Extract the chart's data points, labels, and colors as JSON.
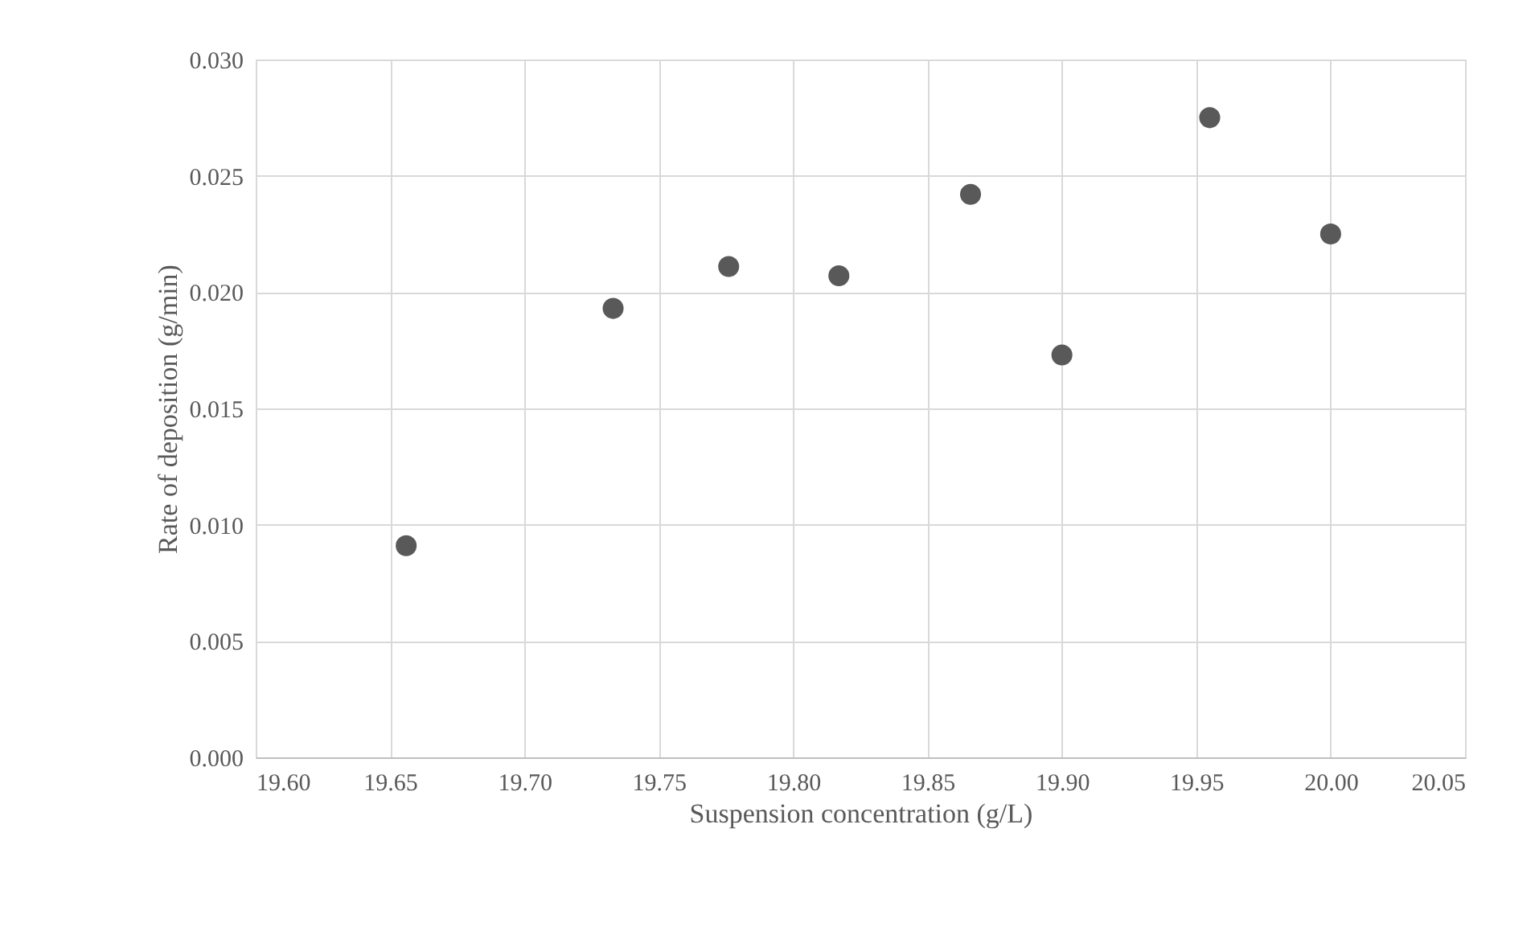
{
  "chart_data": {
    "type": "scatter",
    "xlabel": "Suspension concentration (g/L)",
    "ylabel": "Rate of deposition (g/min)",
    "x": [
      19.656,
      19.733,
      19.776,
      19.817,
      19.866,
      19.9,
      19.955,
      20.0
    ],
    "series": [
      {
        "color": "#595959",
        "values": [
          0.0091,
          0.0193,
          0.0211,
          0.0207,
          0.0242,
          0.0173,
          0.0275,
          0.0225
        ]
      }
    ],
    "xlim": [
      19.6,
      20.05
    ],
    "xticks": [
      {
        "value": 19.6,
        "label": "19.60"
      },
      {
        "value": 19.65,
        "label": "19.65"
      },
      {
        "value": 19.7,
        "label": "19.70"
      },
      {
        "value": 19.75,
        "label": "19.75"
      },
      {
        "value": 19.8,
        "label": "19.80"
      },
      {
        "value": 19.85,
        "label": "19.85"
      },
      {
        "value": 19.9,
        "label": "19.90"
      },
      {
        "value": 19.95,
        "label": "19.95"
      },
      {
        "value": 20.0,
        "label": "20.00"
      },
      {
        "value": 20.05,
        "label": "20.05"
      }
    ],
    "ylim": [
      0,
      0.03
    ],
    "yticks": [
      {
        "value": 0,
        "label": "0.000"
      },
      {
        "value": 0.005,
        "label": "0.005"
      },
      {
        "value": 0.01,
        "label": "0.010"
      },
      {
        "value": 0.015,
        "label": "0.015"
      },
      {
        "value": 0.02,
        "label": "0.020"
      },
      {
        "value": 0.025,
        "label": "0.025"
      },
      {
        "value": 0.03,
        "label": "0.030"
      }
    ],
    "grid": true,
    "marker": "circle"
  }
}
